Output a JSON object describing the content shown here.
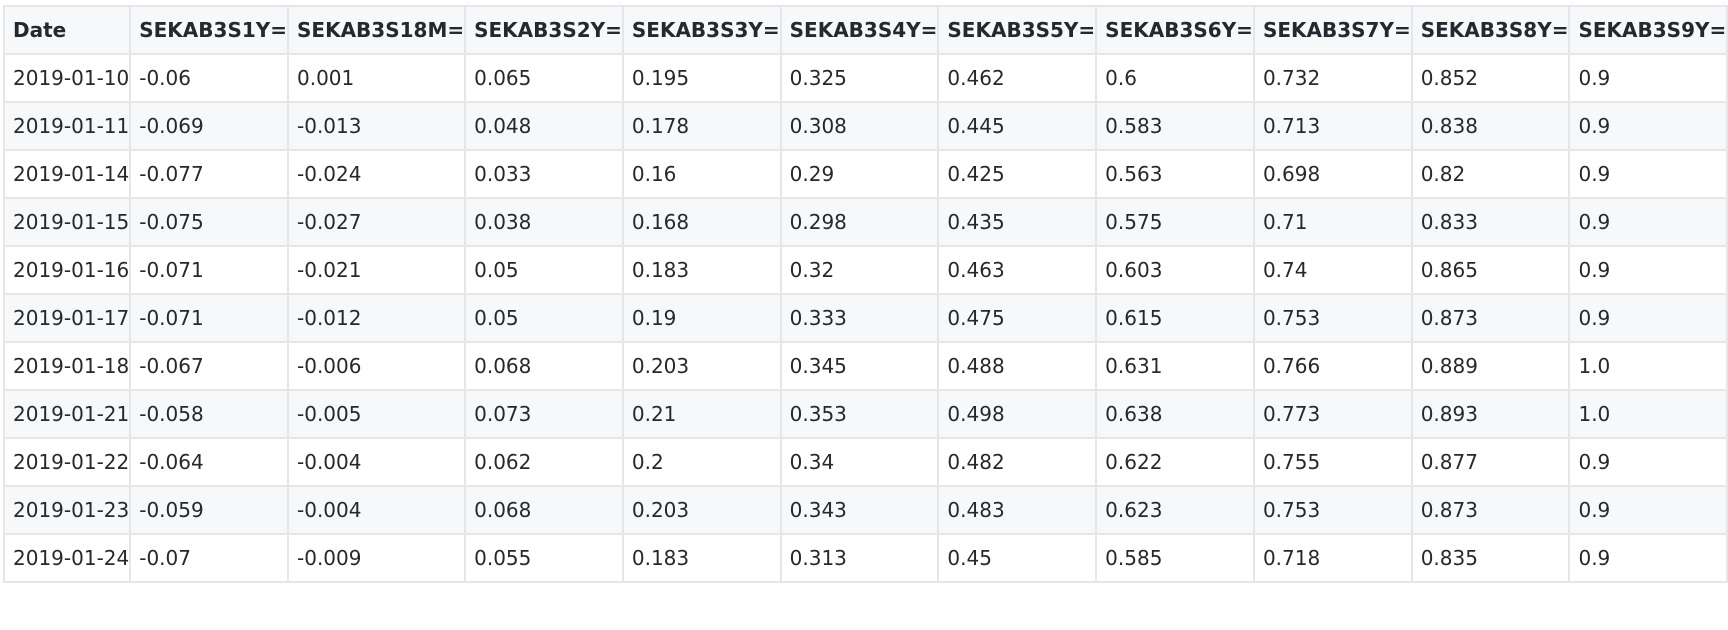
{
  "table": {
    "columns": [
      "Date",
      "SEKAB3S1Y=",
      "SEKAB3S18M=",
      "SEKAB3S2Y=",
      "SEKAB3S3Y=",
      "SEKAB3S4Y=",
      "SEKAB3S5Y=",
      "SEKAB3S6Y=",
      "SEKAB3S7Y=",
      "SEKAB3S8Y=",
      "SEKAB3S9Y="
    ],
    "rows": [
      [
        "2019-01-10",
        "-0.06",
        "0.001",
        "0.065",
        "0.195",
        "0.325",
        "0.462",
        "0.6",
        "0.732",
        "0.852",
        "0.9"
      ],
      [
        "2019-01-11",
        "-0.069",
        "-0.013",
        "0.048",
        "0.178",
        "0.308",
        "0.445",
        "0.583",
        "0.713",
        "0.838",
        "0.9"
      ],
      [
        "2019-01-14",
        "-0.077",
        "-0.024",
        "0.033",
        "0.16",
        "0.29",
        "0.425",
        "0.563",
        "0.698",
        "0.82",
        "0.9"
      ],
      [
        "2019-01-15",
        "-0.075",
        "-0.027",
        "0.038",
        "0.168",
        "0.298",
        "0.435",
        "0.575",
        "0.71",
        "0.833",
        "0.9"
      ],
      [
        "2019-01-16",
        "-0.071",
        "-0.021",
        "0.05",
        "0.183",
        "0.32",
        "0.463",
        "0.603",
        "0.74",
        "0.865",
        "0.9"
      ],
      [
        "2019-01-17",
        "-0.071",
        "-0.012",
        "0.05",
        "0.19",
        "0.333",
        "0.475",
        "0.615",
        "0.753",
        "0.873",
        "0.9"
      ],
      [
        "2019-01-18",
        "-0.067",
        "-0.006",
        "0.068",
        "0.203",
        "0.345",
        "0.488",
        "0.631",
        "0.766",
        "0.889",
        "1.0"
      ],
      [
        "2019-01-21",
        "-0.058",
        "-0.005",
        "0.073",
        "0.21",
        "0.353",
        "0.498",
        "0.638",
        "0.773",
        "0.893",
        "1.0"
      ],
      [
        "2019-01-22",
        "-0.064",
        "-0.004",
        "0.062",
        "0.2",
        "0.34",
        "0.482",
        "0.622",
        "0.755",
        "0.877",
        "0.9"
      ],
      [
        "2019-01-23",
        "-0.059",
        "-0.004",
        "0.068",
        "0.203",
        "0.343",
        "0.483",
        "0.623",
        "0.753",
        "0.873",
        "0.9"
      ],
      [
        "2019-01-24",
        "-0.07",
        "-0.009",
        "0.055",
        "0.183",
        "0.313",
        "0.45",
        "0.585",
        "0.718",
        "0.835",
        "0.9"
      ]
    ]
  }
}
